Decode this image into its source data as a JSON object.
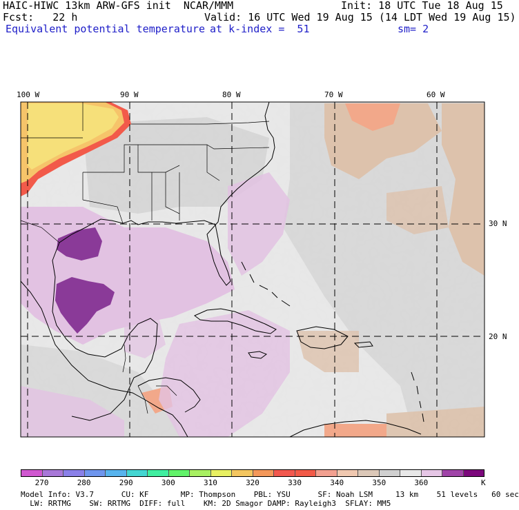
{
  "header": {
    "model_line": "HAIC-HIWC 13km ARW-GFS init  NCAR/MMM",
    "init_line": "Init: 18 UTC Tue 18 Aug 15",
    "fcst_line": "Fcst:   22 h",
    "valid_line": "Valid: 16 UTC Wed 19 Aug 15 (14 LDT Wed 19 Aug 15)",
    "field_name": "Equivalent potential temperature",
    "level_text": "at k-index =  51",
    "smooth_text": "sm= 2"
  },
  "longitude_labels": [
    "100 W",
    "90 W",
    "80 W",
    "70 W",
    "60 W"
  ],
  "latitude_labels": [
    "30 N",
    "20 N"
  ],
  "colorbar": {
    "colors": [
      "#d058d0",
      "#a878d8",
      "#8a80e8",
      "#6f96ee",
      "#58b4ee",
      "#44d6d2",
      "#40eea0",
      "#62f26a",
      "#a8f062",
      "#e8f062",
      "#f4c660",
      "#f4985a",
      "#f2584e",
      "#f25a48",
      "#f2a090",
      "#f0c8b0",
      "#dcc8b8",
      "#d0d0d0",
      "#e8e8e8",
      "#e6c6e6",
      "#a044a8",
      "#7c087c"
    ],
    "tick_labels": [
      "270",
      "280",
      "290",
      "300",
      "310",
      "320",
      "330",
      "340",
      "350",
      "360"
    ],
    "unit": "K"
  },
  "footer": {
    "line1": "Model Info: V3.7      CU: KF       MP: Thompson    PBL: YSU      SF: Noah LSM     13 km    51 levels   60 sec",
    "line2": "  LW: RRTMG    SW: RRTMG  DIFF: full    KM: 2D Smagor DAMP: Rayleigh3  SFLAY: MM5"
  },
  "map_colors": {
    "background": "#e8e8e8",
    "gray": "#cccccc",
    "purple_light": "#e2c2e2",
    "purple_dark": "#8a3a98",
    "tan": "#ddc2ac",
    "salmon": "#f2a88a",
    "orange": "#f6c46a",
    "yellow": "#f6e07a",
    "red": "#f25a4a"
  }
}
